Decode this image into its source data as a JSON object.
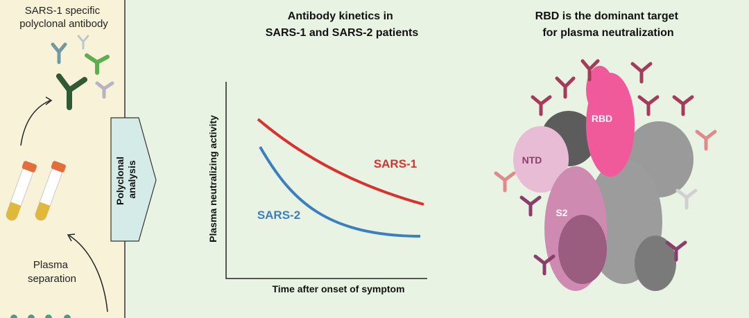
{
  "left_panel": {
    "top_label": [
      "SARS-1 specific",
      "polyclonal antibody"
    ],
    "bottom_label": [
      "Plasma",
      "separation"
    ]
  },
  "arrow_label": [
    "Polyclonal",
    "analysis"
  ],
  "middle_panel": {
    "title": [
      "Antibody kinetics in",
      "SARS-1 and SARS-2 patients"
    ],
    "y_axis_label": "Plasma neutralizing activity",
    "x_axis_label": "Time after onset of symptom",
    "curves": [
      {
        "label": "SARS-1"
      },
      {
        "label": "SARS-2"
      }
    ]
  },
  "right_panel": {
    "title": [
      "RBD is the dominant target",
      "for plasma neutralization"
    ],
    "regions": [
      "RBD",
      "NTD",
      "S2"
    ]
  }
}
